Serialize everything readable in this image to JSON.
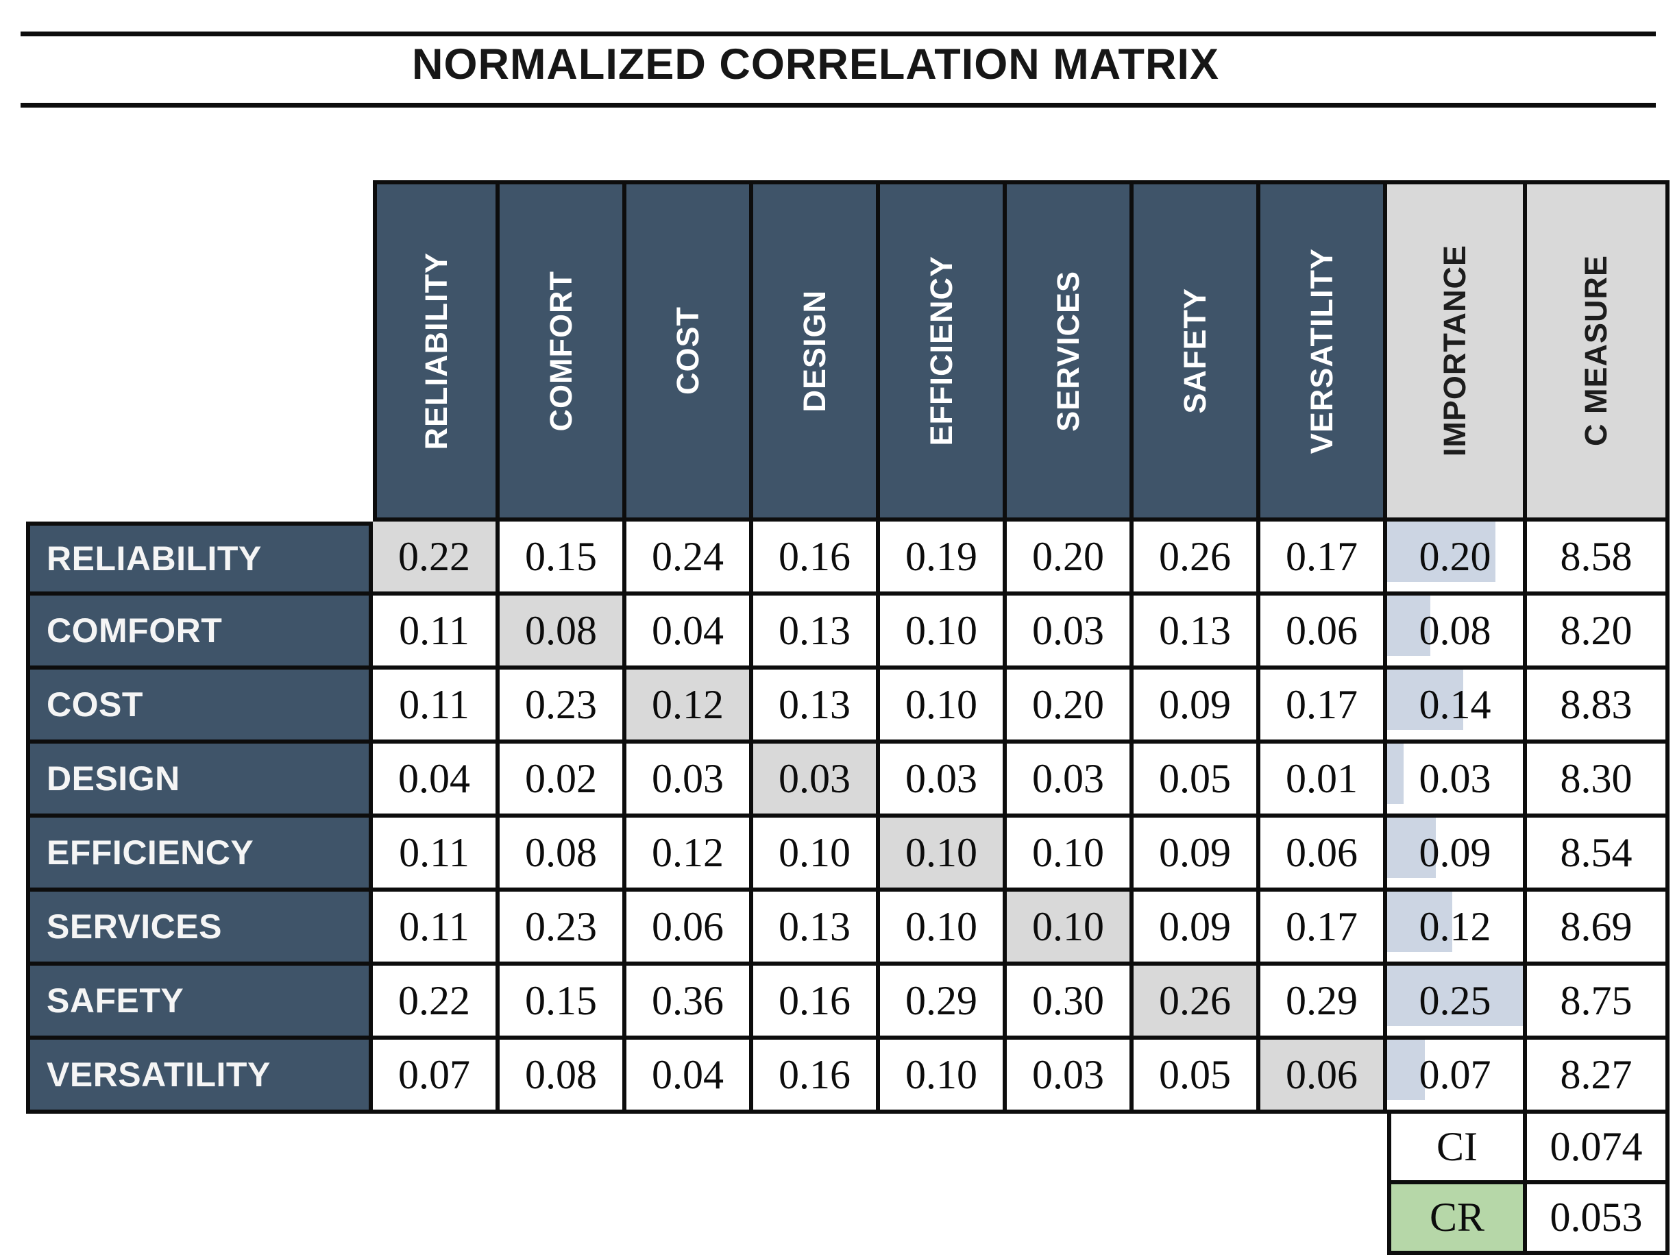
{
  "page": {
    "title": "NORMALIZED CORRELATION MATRIX"
  },
  "chart_data": {
    "type": "table",
    "title": "NORMALIZED CORRELATION MATRIX",
    "column_headers": [
      "RELIABILITY",
      "COMFORT",
      "COST",
      "DESIGN",
      "EFFICIENCY",
      "SERVICES",
      "SAFETY",
      "VERSATILITY",
      "IMPORTANCE",
      "C MEASURE"
    ],
    "rows": [
      {
        "label": "RELIABILITY",
        "values": [
          "0.22",
          "0.15",
          "0.24",
          "0.16",
          "0.19",
          "0.20",
          "0.26",
          "0.17"
        ],
        "importance": "0.20",
        "c_measure": "8.58"
      },
      {
        "label": "COMFORT",
        "values": [
          "0.11",
          "0.08",
          "0.04",
          "0.13",
          "0.10",
          "0.03",
          "0.13",
          "0.06"
        ],
        "importance": "0.08",
        "c_measure": "8.20"
      },
      {
        "label": "COST",
        "values": [
          "0.11",
          "0.23",
          "0.12",
          "0.13",
          "0.10",
          "0.20",
          "0.09",
          "0.17"
        ],
        "importance": "0.14",
        "c_measure": "8.83"
      },
      {
        "label": "DESIGN",
        "values": [
          "0.04",
          "0.02",
          "0.03",
          "0.03",
          "0.03",
          "0.03",
          "0.05",
          "0.01"
        ],
        "importance": "0.03",
        "c_measure": "8.30"
      },
      {
        "label": "EFFICIENCY",
        "values": [
          "0.11",
          "0.08",
          "0.12",
          "0.10",
          "0.10",
          "0.10",
          "0.09",
          "0.06"
        ],
        "importance": "0.09",
        "c_measure": "8.54"
      },
      {
        "label": "SERVICES",
        "values": [
          "0.11",
          "0.23",
          "0.06",
          "0.13",
          "0.10",
          "0.10",
          "0.09",
          "0.17"
        ],
        "importance": "0.12",
        "c_measure": "8.69"
      },
      {
        "label": "SAFETY",
        "values": [
          "0.22",
          "0.15",
          "0.36",
          "0.16",
          "0.29",
          "0.30",
          "0.26",
          "0.29"
        ],
        "importance": "0.25",
        "c_measure": "8.75"
      },
      {
        "label": "VERSATILITY",
        "values": [
          "0.07",
          "0.08",
          "0.04",
          "0.16",
          "0.10",
          "0.03",
          "0.05",
          "0.06"
        ],
        "importance": "0.07",
        "c_measure": "8.27"
      }
    ],
    "summary": {
      "ci_label": "CI",
      "ci_value": "0.074",
      "cr_label": "CR",
      "cr_value": "0.053"
    },
    "layout_hints": {
      "diagonal_highlighted": true,
      "importance_bars_scale_max": 0.25,
      "legend_position": "none",
      "grid": true
    },
    "colors": {
      "header_blue": "#3f5469",
      "highlight_gray": "#d9d9d9",
      "importance_bar_blue": "#ccd5e3",
      "cr_green": "#b6d7a8",
      "border_black": "#0d0d0d"
    }
  }
}
